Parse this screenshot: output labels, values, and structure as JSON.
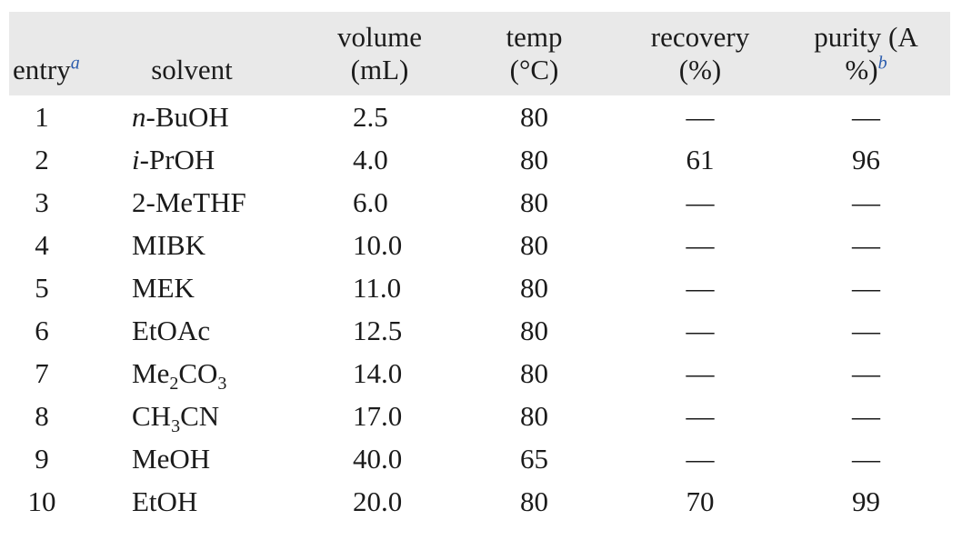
{
  "colors": {
    "header_bg": "#e9e9e9",
    "text": "#1b1b1b",
    "footnote_marker_blue": "#2b5cad",
    "page_bg": "#ffffff"
  },
  "header": {
    "entry": {
      "label": "entry",
      "sup": "a"
    },
    "solvent": {
      "label": "solvent"
    },
    "volume": {
      "line1": "volume",
      "line2": "(mL)"
    },
    "temp": {
      "line1": "temp",
      "line2": "(°C)"
    },
    "recovery": {
      "line1": "recovery",
      "line2": "(%)"
    },
    "purity": {
      "line1": "purity (A",
      "line2": "%)",
      "sup": "b"
    }
  },
  "rows": [
    {
      "entry": "1",
      "solvent": [
        {
          "t": "n",
          "s": "i"
        },
        {
          "t": "-BuOH"
        }
      ],
      "volume": "2.5",
      "temp": "80",
      "recovery": "—",
      "purity": "—"
    },
    {
      "entry": "2",
      "solvent": [
        {
          "t": "i",
          "s": "i"
        },
        {
          "t": "-PrOH"
        }
      ],
      "volume": "4.0",
      "temp": "80",
      "recovery": "61",
      "purity": "96"
    },
    {
      "entry": "3",
      "solvent": [
        {
          "t": "2-MeTHF"
        }
      ],
      "volume": "6.0",
      "temp": "80",
      "recovery": "—",
      "purity": "—"
    },
    {
      "entry": "4",
      "solvent": [
        {
          "t": "MIBK"
        }
      ],
      "volume": "10.0",
      "temp": "80",
      "recovery": "—",
      "purity": "—"
    },
    {
      "entry": "5",
      "solvent": [
        {
          "t": "MEK"
        }
      ],
      "volume": "11.0",
      "temp": "80",
      "recovery": "—",
      "purity": "—"
    },
    {
      "entry": "6",
      "solvent": [
        {
          "t": "EtOAc"
        }
      ],
      "volume": "12.5",
      "temp": "80",
      "recovery": "—",
      "purity": "—"
    },
    {
      "entry": "7",
      "solvent": [
        {
          "t": "Me"
        },
        {
          "t": "2",
          "s": "sub"
        },
        {
          "t": "CO"
        },
        {
          "t": "3",
          "s": "sub"
        }
      ],
      "volume": "14.0",
      "temp": "80",
      "recovery": "—",
      "purity": "—"
    },
    {
      "entry": "8",
      "solvent": [
        {
          "t": "CH"
        },
        {
          "t": "3",
          "s": "sub"
        },
        {
          "t": "CN"
        }
      ],
      "volume": "17.0",
      "temp": "80",
      "recovery": "—",
      "purity": "—"
    },
    {
      "entry": "9",
      "solvent": [
        {
          "t": "MeOH"
        }
      ],
      "volume": "40.0",
      "temp": "65",
      "recovery": "—",
      "purity": "—"
    },
    {
      "entry": "10",
      "solvent": [
        {
          "t": "EtOH"
        }
      ],
      "volume": "20.0",
      "temp": "80",
      "recovery": "70",
      "purity": "99"
    }
  ],
  "chart_data": {
    "type": "table",
    "title": "",
    "columns": [
      "entry",
      "solvent",
      "volume (mL)",
      "temp (°C)",
      "recovery (%)",
      "purity (A%)"
    ],
    "footnote_markers": {
      "entry": "a",
      "purity": "b"
    },
    "rows": [
      [
        "1",
        "n-BuOH",
        "2.5",
        "80",
        "—",
        "—"
      ],
      [
        "2",
        "i-PrOH",
        "4.0",
        "80",
        "61",
        "96"
      ],
      [
        "3",
        "2-MeTHF",
        "6.0",
        "80",
        "—",
        "—"
      ],
      [
        "4",
        "MIBK",
        "10.0",
        "80",
        "—",
        "—"
      ],
      [
        "5",
        "MEK",
        "11.0",
        "80",
        "—",
        "—"
      ],
      [
        "6",
        "EtOAc",
        "12.5",
        "80",
        "—",
        "—"
      ],
      [
        "7",
        "Me2CO3",
        "14.0",
        "80",
        "—",
        "—"
      ],
      [
        "8",
        "CH3CN",
        "17.0",
        "80",
        "—",
        "—"
      ],
      [
        "9",
        "MeOH",
        "40.0",
        "65",
        "—",
        "—"
      ],
      [
        "10",
        "EtOH",
        "20.0",
        "80",
        "70",
        "99"
      ]
    ]
  }
}
